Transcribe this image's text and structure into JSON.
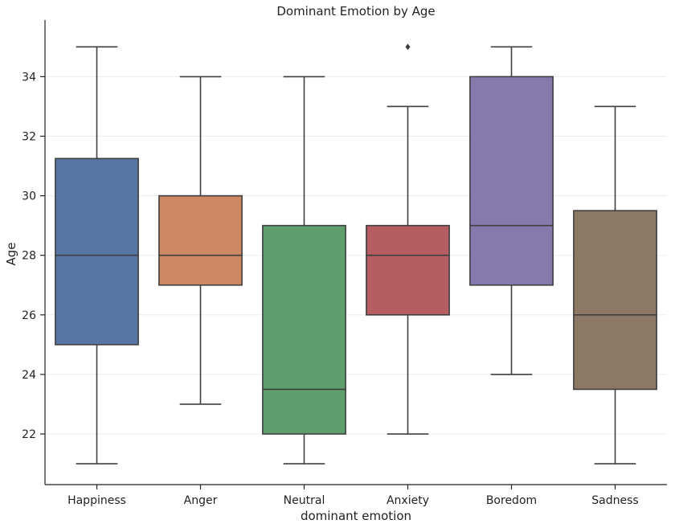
{
  "chart_data": {
    "type": "box",
    "title": "Dominant Emotion by Age",
    "xlabel": "dominant emotion",
    "ylabel": "Age",
    "ylim": [
      20.3,
      35.9
    ],
    "yticks": [
      22,
      24,
      26,
      28,
      30,
      32,
      34
    ],
    "grid": true,
    "categories": [
      "Happiness",
      "Anger",
      "Neutral",
      "Anxiety",
      "Boredom",
      "Sadness"
    ],
    "boxes": [
      {
        "category": "Happiness",
        "whislo": 21,
        "q1": 25,
        "median": 28,
        "q3": 31.25,
        "whishi": 35,
        "fliers": [],
        "color": "#5875a4"
      },
      {
        "category": "Anger",
        "whislo": 23,
        "q1": 27,
        "median": 28,
        "q3": 30,
        "whishi": 34,
        "fliers": [],
        "color": "#cc8963"
      },
      {
        "category": "Neutral",
        "whislo": 21,
        "q1": 22,
        "median": 23.5,
        "q3": 29,
        "whishi": 34,
        "fliers": [],
        "color": "#5f9e6e"
      },
      {
        "category": "Anxiety",
        "whislo": 22,
        "q1": 26,
        "median": 28,
        "q3": 29,
        "whishi": 33,
        "fliers": [
          35
        ],
        "color": "#b55d60"
      },
      {
        "category": "Boredom",
        "whislo": 24,
        "q1": 27,
        "median": 29,
        "q3": 34,
        "whishi": 35,
        "fliers": [],
        "color": "#857aab"
      },
      {
        "category": "Sadness",
        "whislo": 21,
        "q1": 23.5,
        "median": 26,
        "q3": 29.5,
        "whishi": 33,
        "fliers": [],
        "color": "#8d7866"
      }
    ]
  }
}
